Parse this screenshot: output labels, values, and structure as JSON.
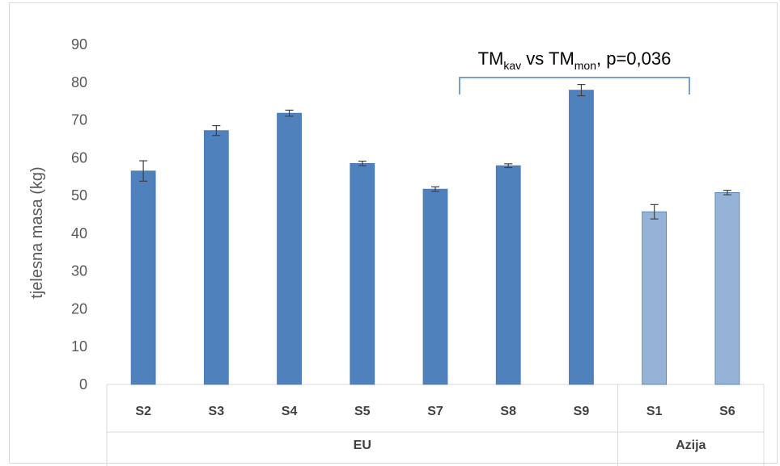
{
  "chart_data": {
    "type": "bar",
    "title": "",
    "xlabel": "",
    "ylabel": "tjelesna masa (kg)",
    "ylim": [
      0,
      90
    ],
    "yticks": [
      0,
      10,
      20,
      30,
      40,
      50,
      60,
      70,
      80,
      90
    ],
    "grid": false,
    "categories": [
      "S2",
      "S3",
      "S4",
      "S5",
      "S7",
      "S8",
      "S9",
      "S1",
      "S6"
    ],
    "values": [
      56.5,
      67.2,
      71.8,
      58.5,
      51.7,
      57.9,
      77.9,
      45.7,
      50.8
    ],
    "error": [
      2.7,
      1.3,
      0.8,
      0.6,
      0.6,
      0.5,
      1.5,
      1.9,
      0.6
    ],
    "groups": [
      {
        "label": "EU",
        "categories": [
          "S2",
          "S3",
          "S4",
          "S5",
          "S7",
          "S8",
          "S9"
        ],
        "color": "#4f81bd"
      },
      {
        "label": "Azija",
        "categories": [
          "S1",
          "S6"
        ],
        "color": "#95b3d7"
      }
    ],
    "annotation": {
      "prefix": "TM",
      "sub1": "kav",
      "mid": " vs TM",
      "sub2": "mon",
      "suffix": ", p=0,036"
    }
  }
}
